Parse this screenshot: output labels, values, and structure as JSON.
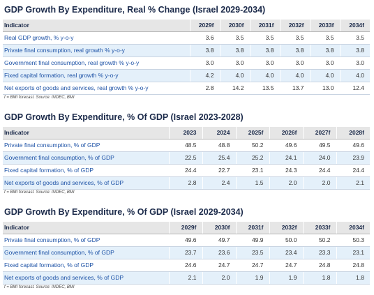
{
  "tables": [
    {
      "title": "GDP Growth By Expenditure, Real % Change (Israel 2029-2034)",
      "header": [
        "Indicator",
        "2029f",
        "2030f",
        "2031f",
        "2032f",
        "2033f",
        "2034f"
      ],
      "rows": [
        [
          "Real GDP growth, % y-o-y",
          "3.6",
          "3.5",
          "3.5",
          "3.5",
          "3.5",
          "3.5"
        ],
        [
          "Private final consumption, real growth % y-o-y",
          "3.8",
          "3.8",
          "3.8",
          "3.8",
          "3.8",
          "3.8"
        ],
        [
          "Government final consumption, real growth % y-o-y",
          "3.0",
          "3.0",
          "3.0",
          "3.0",
          "3.0",
          "3.0"
        ],
        [
          "Fixed capital formation, real growth % y-o-y",
          "4.2",
          "4.0",
          "4.0",
          "4.0",
          "4.0",
          "4.0"
        ],
        [
          "Net exports of goods and services, real growth % y-o-y",
          "2.8",
          "14.2",
          "13.5",
          "13.7",
          "13.0",
          "12.4"
        ]
      ],
      "note": "f = BMI forecast. Source: INDEC, BMI"
    },
    {
      "title": "GDP Growth By Expenditure, % Of GDP (Israel 2023-2028)",
      "header": [
        "Indicator",
        "2023",
        "2024",
        "2025f",
        "2026f",
        "2027f",
        "2028f"
      ],
      "rows": [
        [
          "Private final consumption, % of GDP",
          "48.5",
          "48.8",
          "50.2",
          "49.6",
          "49.5",
          "49.6"
        ],
        [
          "Government final consumption, % of GDP",
          "22.5",
          "25.4",
          "25.2",
          "24.1",
          "24.0",
          "23.9"
        ],
        [
          "Fixed capital formation, % of GDP",
          "24.4",
          "22.7",
          "23.1",
          "24.3",
          "24.4",
          "24.4"
        ],
        [
          "Net exports of goods and services, % of GDP",
          "2.8",
          "2.4",
          "1.5",
          "2.0",
          "2.0",
          "2.1"
        ]
      ],
      "note": "f = BMI forecast. Source: INDEC, BMI"
    },
    {
      "title": "GDP Growth By Expenditure, % Of GDP (Israel 2029-2034)",
      "header": [
        "Indicator",
        "2029f",
        "2030f",
        "2031f",
        "2032f",
        "2033f",
        "2034f"
      ],
      "rows": [
        [
          "Private final consumption, % of GDP",
          "49.6",
          "49.7",
          "49.9",
          "50.0",
          "50.2",
          "50.3"
        ],
        [
          "Government final consumption, % of GDP",
          "23.7",
          "23.6",
          "23.5",
          "23.4",
          "23.3",
          "23.1"
        ],
        [
          "Fixed capital formation, % of GDP",
          "24.6",
          "24.7",
          "24.7",
          "24.7",
          "24.8",
          "24.8"
        ],
        [
          "Net exports of goods and services, % of GDP",
          "2.1",
          "2.0",
          "1.9",
          "1.9",
          "1.8",
          "1.8"
        ]
      ],
      "note": "f = BMI forecast. Source: INDEC, BMI"
    }
  ]
}
